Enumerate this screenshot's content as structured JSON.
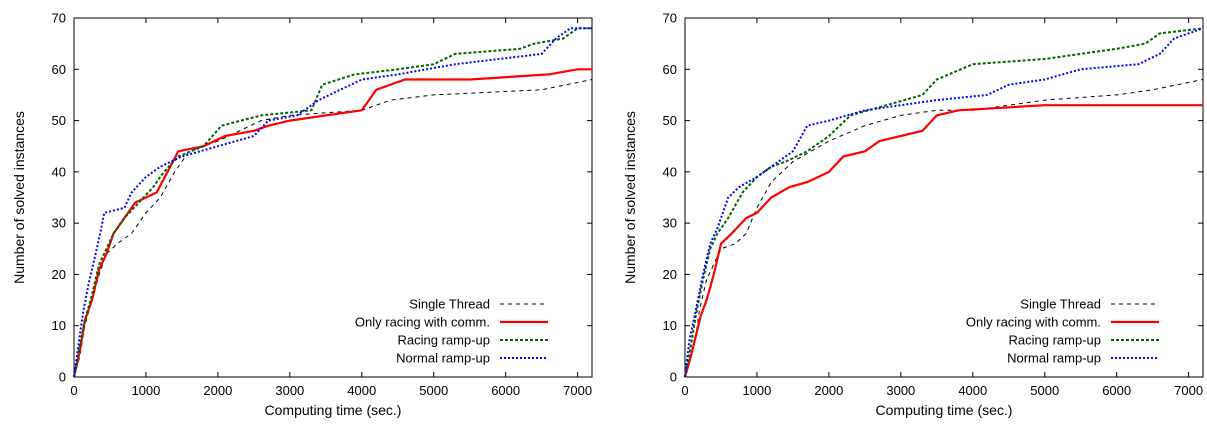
{
  "chart_data": [
    {
      "type": "line",
      "title": "",
      "xlabel": "Computing time (sec.)",
      "ylabel": "Number of solved instances",
      "xlim": [
        0,
        7200
      ],
      "ylim": [
        0,
        70
      ],
      "xticks": [
        0,
        1000,
        2000,
        3000,
        4000,
        5000,
        6000,
        7000
      ],
      "yticks": [
        0,
        10,
        20,
        30,
        40,
        50,
        60,
        70
      ],
      "grid": false,
      "legend_position": "bottom-right",
      "series": [
        {
          "name": "Single Thread",
          "color": "#000000",
          "dash": "4,4",
          "width": 1,
          "points": [
            [
              0,
              0
            ],
            [
              80,
              4
            ],
            [
              150,
              10
            ],
            [
              250,
              15
            ],
            [
              350,
              20
            ],
            [
              450,
              24
            ],
            [
              600,
              26
            ],
            [
              800,
              28
            ],
            [
              1000,
              32
            ],
            [
              1200,
              35
            ],
            [
              1400,
              40
            ],
            [
              1600,
              44
            ],
            [
              2000,
              46
            ],
            [
              2600,
              50
            ],
            [
              3000,
              51
            ],
            [
              4000,
              52
            ],
            [
              4400,
              54
            ],
            [
              5000,
              55
            ],
            [
              6500,
              56
            ],
            [
              7200,
              58
            ]
          ]
        },
        {
          "name": "Only racing with comm.",
          "color": "#ff0000",
          "dash": "",
          "width": 2.2,
          "points": [
            [
              0,
              0
            ],
            [
              80,
              5
            ],
            [
              150,
              11
            ],
            [
              250,
              15
            ],
            [
              350,
              21
            ],
            [
              450,
              24
            ],
            [
              550,
              28
            ],
            [
              700,
              31
            ],
            [
              850,
              34
            ],
            [
              1000,
              35
            ],
            [
              1150,
              36
            ],
            [
              1300,
              40
            ],
            [
              1450,
              44
            ],
            [
              1800,
              45
            ],
            [
              2100,
              47
            ],
            [
              2500,
              48
            ],
            [
              2700,
              49
            ],
            [
              3000,
              50
            ],
            [
              3500,
              51
            ],
            [
              4000,
              52
            ],
            [
              4100,
              54
            ],
            [
              4200,
              56
            ],
            [
              4600,
              58
            ],
            [
              5500,
              58
            ],
            [
              6600,
              59
            ],
            [
              7000,
              60
            ],
            [
              7200,
              60
            ]
          ]
        },
        {
          "name": "Racing ramp-up",
          "color": "#006400",
          "dash": "3,2",
          "width": 2,
          "points": [
            [
              0,
              0
            ],
            [
              80,
              6
            ],
            [
              150,
              11
            ],
            [
              250,
              16
            ],
            [
              350,
              22
            ],
            [
              450,
              25
            ],
            [
              550,
              28
            ],
            [
              700,
              31
            ],
            [
              900,
              34
            ],
            [
              1100,
              37
            ],
            [
              1250,
              40
            ],
            [
              1450,
              43
            ],
            [
              1800,
              45
            ],
            [
              2050,
              49
            ],
            [
              2600,
              51
            ],
            [
              3300,
              52
            ],
            [
              3450,
              57
            ],
            [
              3900,
              59
            ],
            [
              4500,
              60
            ],
            [
              5000,
              61
            ],
            [
              5300,
              63
            ],
            [
              6200,
              64
            ],
            [
              6400,
              65
            ],
            [
              6800,
              66
            ],
            [
              7000,
              68
            ],
            [
              7200,
              68
            ]
          ]
        },
        {
          "name": "Normal ramp-up",
          "color": "#0000ff",
          "dash": "2,2",
          "width": 2,
          "points": [
            [
              0,
              0
            ],
            [
              60,
              6
            ],
            [
              120,
              12
            ],
            [
              200,
              18
            ],
            [
              300,
              24
            ],
            [
              380,
              29
            ],
            [
              420,
              32
            ],
            [
              700,
              33
            ],
            [
              800,
              36
            ],
            [
              1000,
              39
            ],
            [
              1200,
              41
            ],
            [
              1500,
              43
            ],
            [
              2000,
              45
            ],
            [
              2500,
              47
            ],
            [
              2700,
              50
            ],
            [
              3100,
              51
            ],
            [
              3400,
              54
            ],
            [
              4000,
              58
            ],
            [
              4500,
              59
            ],
            [
              5300,
              61
            ],
            [
              6500,
              63
            ],
            [
              6700,
              66
            ],
            [
              6900,
              68
            ],
            [
              7200,
              68
            ]
          ]
        }
      ]
    },
    {
      "type": "line",
      "title": "",
      "xlabel": "Computing time (sec.)",
      "ylabel": "Number of solved instances",
      "xlim": [
        0,
        7200
      ],
      "ylim": [
        0,
        70
      ],
      "xticks": [
        0,
        1000,
        2000,
        3000,
        4000,
        5000,
        6000,
        7000
      ],
      "yticks": [
        0,
        10,
        20,
        30,
        40,
        50,
        60,
        70
      ],
      "grid": false,
      "legend_position": "bottom-right",
      "series": [
        {
          "name": "Single Thread",
          "color": "#000000",
          "dash": "4,4",
          "width": 1,
          "points": [
            [
              0,
              0
            ],
            [
              80,
              4
            ],
            [
              150,
              8
            ],
            [
              200,
              13
            ],
            [
              300,
              19
            ],
            [
              400,
              22
            ],
            [
              500,
              25
            ],
            [
              700,
              26
            ],
            [
              850,
              28
            ],
            [
              1000,
              33
            ],
            [
              1200,
              38
            ],
            [
              1500,
              42
            ],
            [
              2000,
              46
            ],
            [
              2500,
              49
            ],
            [
              3000,
              51
            ],
            [
              3500,
              52
            ],
            [
              4000,
              52
            ],
            [
              4500,
              53
            ],
            [
              5000,
              54
            ],
            [
              6000,
              55
            ],
            [
              6500,
              56
            ],
            [
              7200,
              58
            ]
          ]
        },
        {
          "name": "Only racing with comm.",
          "color": "#ff0000",
          "dash": "",
          "width": 2.2,
          "points": [
            [
              0,
              0
            ],
            [
              80,
              4
            ],
            [
              150,
              8
            ],
            [
              220,
              12
            ],
            [
              300,
              15
            ],
            [
              400,
              20
            ],
            [
              500,
              26
            ],
            [
              650,
              28
            ],
            [
              850,
              31
            ],
            [
              1000,
              32
            ],
            [
              1200,
              35
            ],
            [
              1450,
              37
            ],
            [
              1700,
              38
            ],
            [
              2000,
              40
            ],
            [
              2200,
              43
            ],
            [
              2500,
              44
            ],
            [
              2700,
              46
            ],
            [
              3000,
              47
            ],
            [
              3300,
              48
            ],
            [
              3500,
              51
            ],
            [
              3800,
              52
            ],
            [
              5000,
              53
            ],
            [
              7200,
              53
            ]
          ]
        },
        {
          "name": "Racing ramp-up",
          "color": "#006400",
          "dash": "3,2",
          "width": 2,
          "points": [
            [
              0,
              0
            ],
            [
              80,
              6
            ],
            [
              150,
              12
            ],
            [
              250,
              19
            ],
            [
              350,
              25
            ],
            [
              450,
              28
            ],
            [
              600,
              31
            ],
            [
              800,
              36
            ],
            [
              1000,
              39
            ],
            [
              1200,
              41
            ],
            [
              1400,
              42
            ],
            [
              1700,
              44
            ],
            [
              2000,
              47
            ],
            [
              2300,
              51
            ],
            [
              2800,
              53
            ],
            [
              3300,
              55
            ],
            [
              3500,
              58
            ],
            [
              4000,
              61
            ],
            [
              5000,
              62
            ],
            [
              6000,
              64
            ],
            [
              6400,
              65
            ],
            [
              6600,
              67
            ],
            [
              7200,
              68
            ]
          ]
        },
        {
          "name": "Normal ramp-up",
          "color": "#0000ff",
          "dash": "2,2",
          "width": 2,
          "points": [
            [
              0,
              0
            ],
            [
              60,
              7
            ],
            [
              150,
              13
            ],
            [
              250,
              20
            ],
            [
              350,
              26
            ],
            [
              450,
              29
            ],
            [
              600,
              35
            ],
            [
              750,
              37
            ],
            [
              1000,
              39
            ],
            [
              1300,
              42
            ],
            [
              1500,
              44
            ],
            [
              1700,
              49
            ],
            [
              2000,
              50
            ],
            [
              2500,
              52
            ],
            [
              3500,
              54
            ],
            [
              4200,
              55
            ],
            [
              4500,
              57
            ],
            [
              5000,
              58
            ],
            [
              5500,
              60
            ],
            [
              6300,
              61
            ],
            [
              6600,
              63
            ],
            [
              6800,
              66
            ],
            [
              7200,
              68
            ]
          ]
        }
      ]
    }
  ]
}
